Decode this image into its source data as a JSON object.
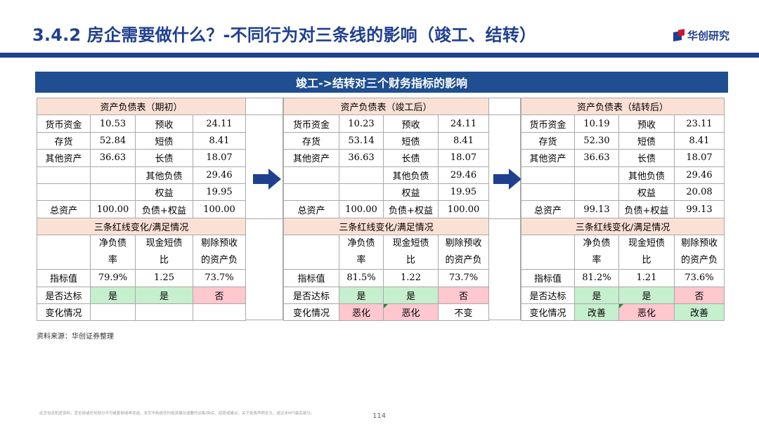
{
  "header": {
    "title": "3.4.2 房企需要做什么？-不同行为对三条线的影响（竣工、结转）",
    "logo_text": "华创研究"
  },
  "banner": "竣工->结转对三个财务指标的影响",
  "panels": [
    {
      "balance_title": "资产负债表（期初）",
      "rows": [
        [
          "货币资金",
          "10.53",
          "预收",
          "24.11"
        ],
        [
          "存货",
          "52.84",
          "短债",
          "8.41"
        ],
        [
          "其他资产",
          "36.63",
          "长债",
          "18.07"
        ],
        [
          "",
          "",
          "其他负债",
          "29.46"
        ],
        [
          "",
          "",
          "权益",
          "19.95"
        ],
        [
          "总资产",
          "100.00",
          "负债+权益",
          "100.00"
        ]
      ],
      "redline_title": "三条红线变化/满足情况",
      "metric_headers": [
        [
          "净负债",
          "率"
        ],
        [
          "现金短债",
          "比"
        ],
        [
          "剔除预收",
          "的资产负"
        ]
      ],
      "indicator_label": "指标值",
      "indicator_values": [
        "79.9%",
        "1.25",
        "73.7%"
      ],
      "meet_label": "是否达标",
      "meet_values": [
        "是",
        "是",
        "否"
      ],
      "change_label": "变化情况",
      "change_values": [
        "",
        "",
        ""
      ]
    },
    {
      "balance_title": "资产负债表（竣工后）",
      "rows": [
        [
          "货币资金",
          "10.23",
          "预收",
          "24.11"
        ],
        [
          "存货",
          "53.14",
          "短债",
          "8.41"
        ],
        [
          "其他资产",
          "36.63",
          "长债",
          "18.07"
        ],
        [
          "",
          "",
          "其他负债",
          "29.46"
        ],
        [
          "",
          "",
          "权益",
          "19.95"
        ],
        [
          "总资产",
          "100.00",
          "负债+权益",
          "100.00"
        ]
      ],
      "redline_title": "三条红线变化/满足情况",
      "metric_headers": [
        [
          "净负债",
          "率"
        ],
        [
          "现金短债",
          "比"
        ],
        [
          "剔除预收",
          "的资产负"
        ]
      ],
      "indicator_label": "指标值",
      "indicator_values": [
        "81.5%",
        "1.22",
        "73.7%"
      ],
      "meet_label": "是否达标",
      "meet_values": [
        "是",
        "是",
        "否"
      ],
      "change_label": "变化情况",
      "change_values": [
        "恶化",
        "恶化",
        "不变"
      ]
    },
    {
      "balance_title": "资产负债表（结转后）",
      "rows": [
        [
          "货币资金",
          "10.19",
          "预收",
          "23.11"
        ],
        [
          "存货",
          "52.30",
          "短债",
          "8.41"
        ],
        [
          "其他资产",
          "36.63",
          "长债",
          "18.07"
        ],
        [
          "",
          "",
          "其他负债",
          "29.46"
        ],
        [
          "",
          "",
          "权益",
          "20.08"
        ],
        [
          "总资产",
          "99.13",
          "负债+权益",
          "99.13"
        ]
      ],
      "redline_title": "三条红线变化/满足情况",
      "metric_headers": [
        [
          "净负债",
          "率"
        ],
        [
          "现金短债",
          "比"
        ],
        [
          "剔除预收",
          "的资产负"
        ]
      ],
      "indicator_label": "指标值",
      "indicator_values": [
        "81.2%",
        "1.21",
        "73.6%"
      ],
      "meet_label": "是否达标",
      "meet_values": [
        "是",
        "是",
        "否"
      ],
      "change_label": "变化情况",
      "change_values": [
        "改善",
        "恶化",
        "改善"
      ]
    }
  ],
  "colors": {
    "brand_blue": "#1f3f8f",
    "banner_blue": "#1f4e91",
    "header_peach": "#fbe1d5",
    "good_green": "#c6efce",
    "bad_pink": "#ffc7ce",
    "logo_red": "#d0142c"
  },
  "icons": [
    "right-arrow-icon",
    "right-arrow-icon"
  ],
  "source": "资料来源：华创证券整理",
  "disclaimer": "此页包含机密资料，其全部或任何部分不可被复制或再发送。本页不构成任何投资建议或要约出售/购买、招揽或建议。关于免责声明全文，请见本PPT最后部分。",
  "page_number": "114"
}
